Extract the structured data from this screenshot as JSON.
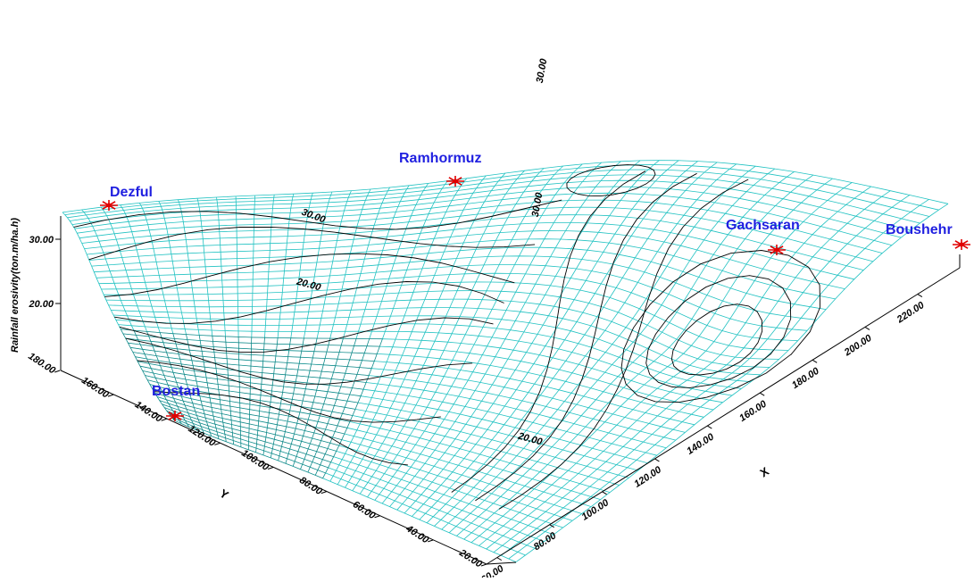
{
  "chart_data": {
    "type": "surface",
    "zlabel": "Rainfall erosivity(ton.m/ha.h)",
    "xlabel": "X",
    "ylabel": "Y",
    "x_ticks": [
      "60.00",
      "80.00",
      "100.00",
      "120.00",
      "140.00",
      "160.00",
      "180.00",
      "200.00",
      "220.00"
    ],
    "y_ticks": [
      "20.00",
      "40.00",
      "60.00",
      "80.00",
      "100.00",
      "120.00",
      "140.00",
      "160.00",
      "180.00"
    ],
    "z_ticks": [
      "20.00",
      "30.00"
    ],
    "contour_labels": [
      "30.00",
      "30.00",
      "30.00",
      "20.00",
      "20.00"
    ],
    "stations": [
      {
        "name": "Dezful"
      },
      {
        "name": "Ramhormuz"
      },
      {
        "name": "Gachsaran"
      },
      {
        "name": "Boushehr"
      },
      {
        "name": "Bostan"
      }
    ],
    "colors": {
      "mesh": "#22c2c2",
      "mesh_dark": "#104848",
      "contour": "#000000",
      "station_marker": "#e00000",
      "station_label": "#1f1fe0"
    }
  }
}
